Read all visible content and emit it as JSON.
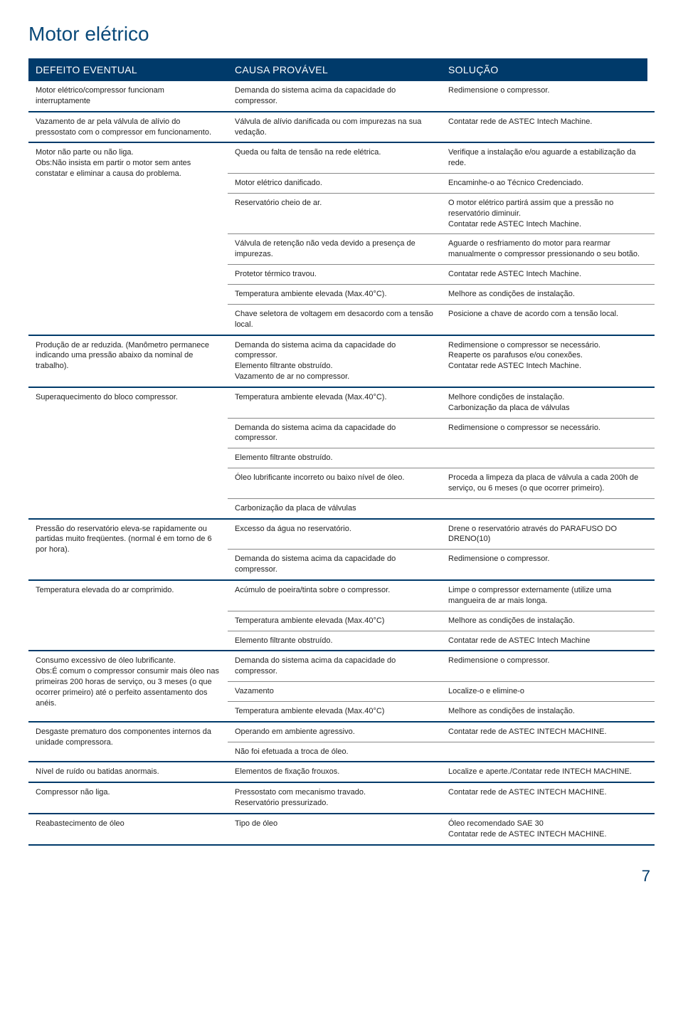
{
  "title": "Motor elétrico",
  "pageNumber": "7",
  "headers": {
    "defect": "DEFEITO EVENTUAL",
    "cause": "CAUSA PROVÁVEL",
    "solution": "SOLUÇÃO"
  },
  "colors": {
    "headerBg": "#003a6a",
    "titleColor": "#0a4a7a",
    "ruleColor": "#003a6a",
    "thinRule": "#888888",
    "textColor": "#222222",
    "background": "#ffffff"
  },
  "fonts": {
    "titleSize": 28,
    "headerSize": 14,
    "bodySize": 11
  },
  "layout": {
    "col1Width": 280,
    "col2Width": 300,
    "col3Width": 290
  },
  "rows": [
    {
      "defect": "Motor elétrico/compressor funcionam interruptamente",
      "pairs": [
        {
          "cause": "Demanda do sistema acima da capacidade do compressor.",
          "solution": "Redimensione o compressor."
        }
      ]
    },
    {
      "defect": "Vazamento de ar pela válvula de alívio do pressostato com o compressor em funcionamento.",
      "pairs": [
        {
          "cause": "Válvula de alívio danificada ou com impurezas na sua vedação.",
          "solution": "Contatar rede de ASTEC Intech Machine."
        }
      ]
    },
    {
      "defect": "Motor não parte ou não liga.\nObs:Não insista em partir o motor sem antes constatar e eliminar a causa do problema.",
      "pairs": [
        {
          "cause": "Queda ou falta de tensão na rede elétrica.",
          "solution": "Verifique a instalação e/ou aguarde a estabilização da rede."
        },
        {
          "cause": "Motor elétrico danificado.",
          "solution": "Encaminhe-o ao Técnico Credenciado."
        },
        {
          "cause": "Reservatório cheio de ar.",
          "solution": "O motor elétrico partirá assim que a pressão no reservatório diminuir.\nContatar rede ASTEC Intech Machine."
        },
        {
          "cause": "Válvula de retenção não veda devido a presença de impurezas.",
          "solution": "Aguarde o resfriamento do motor para rearmar manualmente o compressor pressionando o seu botão."
        },
        {
          "cause": "Protetor térmico travou.",
          "solution": "Contatar rede ASTEC Intech Machine."
        },
        {
          "cause": "Temperatura ambiente elevada (Max.40°C).",
          "solution": "Melhore as condições de instalação."
        },
        {
          "cause": "Chave seletora de voltagem em desacordo com a tensão local.",
          "solution": "Posicione a chave de acordo com a tensão local."
        }
      ]
    },
    {
      "defect": "Produção de ar reduzida. (Manômetro permanece indicando uma pressão abaixo da nominal de trabalho).",
      "pairs": [
        {
          "cause": "Demanda do sistema acima da capacidade do compressor.\nElemento filtrante obstruído.\nVazamento de ar no compressor.",
          "solution": "Redimensione o compressor se necessário.\nReaperte os parafusos e/ou conexões.\nContatar rede ASTEC Intech Machine."
        }
      ]
    },
    {
      "defect": "Superaquecimento do bloco compressor.",
      "pairs": [
        {
          "cause": "Temperatura ambiente elevada (Max.40°C).",
          "solution": "Melhore condições de instalação.\nCarbonização da placa de válvulas"
        },
        {
          "cause": "Demanda do sistema acima da capacidade do compressor.",
          "solution": "Redimensione o compressor se necessário."
        },
        {
          "cause": "Elemento filtrante obstruído.",
          "solution": ""
        },
        {
          "cause": "Óleo lubrificante incorreto ou baixo nível de óleo.",
          "solution": "Proceda a limpeza da placa de válvula a cada 200h de serviço, ou 6 meses (o que ocorrer primeiro)."
        },
        {
          "cause": "Carbonização da placa de válvulas",
          "solution": ""
        }
      ]
    },
    {
      "defect": "Pressão do reservatório eleva-se rapidamente ou partidas muito freqüentes. (normal é em torno de 6 por hora).",
      "pairs": [
        {
          "cause": "Excesso da água no reservatório.",
          "solution": "Drene o reservatório através do PARAFUSO DO DRENO(10)"
        },
        {
          "cause": "Demanda do sistema acima da capacidade do compressor.",
          "solution": "Redimensione o compressor."
        }
      ]
    },
    {
      "defect": "Temperatura elevada do ar comprimido.",
      "pairs": [
        {
          "cause": "Acúmulo de poeira/tinta sobre o compressor.",
          "solution": "Limpe o compressor externamente (utilize uma mangueira de ar mais longa."
        },
        {
          "cause": "Temperatura ambiente elevada (Max.40°C)",
          "solution": "Melhore as condições de instalação."
        },
        {
          "cause": "Elemento filtrante obstruído.",
          "solution": "Contatar rede de ASTEC Intech Machine"
        }
      ]
    },
    {
      "defect": "Consumo excessivo de óleo lubrificante.\nObs:É comum o compressor consumir mais óleo nas primeiras 200 horas de serviço, ou 3 meses (o que ocorrer primeiro) até o perfeito assentamento dos anéis.",
      "pairs": [
        {
          "cause": "Demanda do sistema acima da capacidade do compressor.",
          "solution": "Redimensione o compressor."
        },
        {
          "cause": "Vazamento",
          "solution": "Localize-o e elimine-o"
        },
        {
          "cause": "Temperatura ambiente elevada (Max.40°C)",
          "solution": "Melhore as condições de instalação."
        }
      ]
    },
    {
      "defect": "Desgaste prematuro dos componentes internos da unidade compressora.",
      "pairs": [
        {
          "cause": "Operando em ambiente agressivo.",
          "solution": "Contatar rede de ASTEC INTECH MACHINE."
        },
        {
          "cause": "Não foi efetuada a troca de óleo.",
          "solution": ""
        }
      ]
    },
    {
      "defect": "Nível de ruído ou batidas anormais.",
      "pairs": [
        {
          "cause": "Elementos de fixação frouxos.",
          "solution": "Localize e aperte./Contatar rede INTECH MACHINE."
        }
      ]
    },
    {
      "defect": "Compressor não liga.",
      "pairs": [
        {
          "cause": "Pressostato com mecanismo travado.\nReservatório pressurizado.",
          "solution": "Contatar rede de ASTEC INTECH MACHINE."
        }
      ]
    },
    {
      "defect": "Reabastecimento de óleo",
      "pairs": [
        {
          "cause": "Tipo de óleo",
          "solution": "Óleo recomendado SAE 30\nContatar rede de ASTEC INTECH MACHINE."
        }
      ]
    }
  ]
}
